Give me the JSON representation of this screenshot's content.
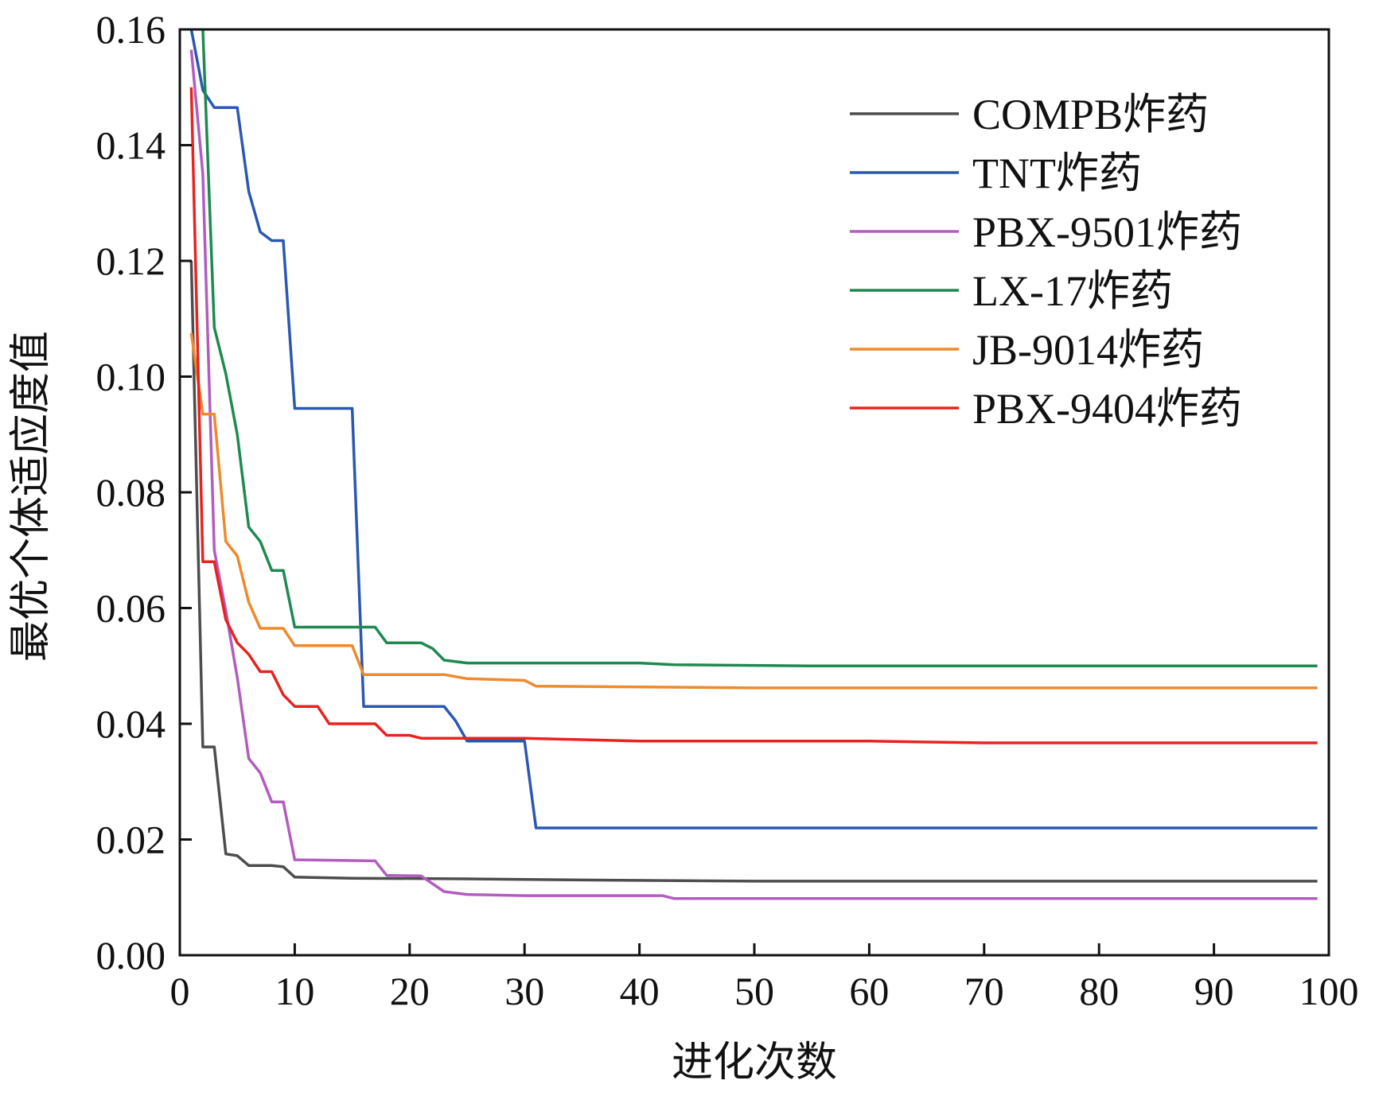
{
  "chart_data": {
    "type": "line",
    "xlabel": "进化次数",
    "ylabel": "最优个体适应度值",
    "xlim": [
      0,
      100
    ],
    "ylim": [
      0,
      0.16
    ],
    "x_ticks": [
      "0",
      "10",
      "20",
      "30",
      "40",
      "50",
      "60",
      "70",
      "80",
      "90",
      "100"
    ],
    "y_ticks": [
      "0.00",
      "0.02",
      "0.04",
      "0.06",
      "0.08",
      "0.10",
      "0.12",
      "0.14",
      "0.16"
    ],
    "grid": false,
    "legend_position": "top-right",
    "series": [
      {
        "name": "COMPB炸药",
        "color": "#4d4d4d",
        "points": [
          [
            1,
            0.12
          ],
          [
            2,
            0.036
          ],
          [
            3,
            0.036
          ],
          [
            4,
            0.0175
          ],
          [
            5,
            0.0172
          ],
          [
            6,
            0.0155
          ],
          [
            7,
            0.0155
          ],
          [
            8,
            0.0155
          ],
          [
            9,
            0.0153
          ],
          [
            10,
            0.0135
          ],
          [
            15,
            0.0133
          ],
          [
            25,
            0.0132
          ],
          [
            35,
            0.013
          ],
          [
            50,
            0.0128
          ],
          [
            99,
            0.0128
          ]
        ]
      },
      {
        "name": "TNT炸药",
        "color": "#2b57b4",
        "points": [
          [
            1,
            0.16
          ],
          [
            2,
            0.1495
          ],
          [
            3,
            0.1465
          ],
          [
            4,
            0.1465
          ],
          [
            5,
            0.1465
          ],
          [
            6,
            0.132
          ],
          [
            7,
            0.125
          ],
          [
            8,
            0.1235
          ],
          [
            9,
            0.1235
          ],
          [
            10,
            0.0945
          ],
          [
            15,
            0.0945
          ],
          [
            16,
            0.043
          ],
          [
            22,
            0.043
          ],
          [
            23,
            0.043
          ],
          [
            24,
            0.0405
          ],
          [
            25,
            0.037
          ],
          [
            30,
            0.037
          ],
          [
            31,
            0.022
          ],
          [
            99,
            0.022
          ]
        ]
      },
      {
        "name": "PBX-9501炸药",
        "color": "#b25cc0",
        "points": [
          [
            1,
            0.1565
          ],
          [
            2,
            0.135
          ],
          [
            3,
            0.07
          ],
          [
            4,
            0.0595
          ],
          [
            5,
            0.048
          ],
          [
            6,
            0.034
          ],
          [
            7,
            0.0315
          ],
          [
            8,
            0.0265
          ],
          [
            9,
            0.0265
          ],
          [
            10,
            0.0165
          ],
          [
            17,
            0.0163
          ],
          [
            18,
            0.0138
          ],
          [
            21,
            0.0137
          ],
          [
            23,
            0.011
          ],
          [
            25,
            0.0105
          ],
          [
            30,
            0.0103
          ],
          [
            42,
            0.0103
          ],
          [
            43,
            0.0098
          ],
          [
            99,
            0.0098
          ]
        ]
      },
      {
        "name": "LX-17炸药",
        "color": "#1e8a4f",
        "points": [
          [
            2,
            0.16
          ],
          [
            3,
            0.1085
          ],
          [
            4,
            0.1005
          ],
          [
            5,
            0.09
          ],
          [
            6,
            0.074
          ],
          [
            7,
            0.0715
          ],
          [
            8,
            0.0665
          ],
          [
            9,
            0.0665
          ],
          [
            10,
            0.0567
          ],
          [
            17,
            0.0567
          ],
          [
            18,
            0.054
          ],
          [
            21,
            0.054
          ],
          [
            22,
            0.053
          ],
          [
            23,
            0.051
          ],
          [
            25,
            0.0505
          ],
          [
            40,
            0.0505
          ],
          [
            43,
            0.0502
          ],
          [
            55,
            0.05
          ],
          [
            99,
            0.05
          ]
        ]
      },
      {
        "name": "JB-9014炸药",
        "color": "#ee8a2c",
        "points": [
          [
            1,
            0.1075
          ],
          [
            2,
            0.0935
          ],
          [
            3,
            0.0935
          ],
          [
            4,
            0.0715
          ],
          [
            5,
            0.069
          ],
          [
            6,
            0.061
          ],
          [
            7,
            0.0565
          ],
          [
            8,
            0.0565
          ],
          [
            9,
            0.0565
          ],
          [
            10,
            0.0535
          ],
          [
            15,
            0.0535
          ],
          [
            16,
            0.0485
          ],
          [
            23,
            0.0485
          ],
          [
            25,
            0.0478
          ],
          [
            30,
            0.0475
          ],
          [
            31,
            0.0465
          ],
          [
            50,
            0.0462
          ],
          [
            99,
            0.0462
          ]
        ]
      },
      {
        "name": "PBX-9404炸药",
        "color": "#e8231f",
        "points": [
          [
            1,
            0.15
          ],
          [
            2,
            0.068
          ],
          [
            3,
            0.068
          ],
          [
            4,
            0.058
          ],
          [
            5,
            0.054
          ],
          [
            6,
            0.052
          ],
          [
            7,
            0.049
          ],
          [
            8,
            0.049
          ],
          [
            9,
            0.045
          ],
          [
            10,
            0.043
          ],
          [
            11,
            0.043
          ],
          [
            12,
            0.043
          ],
          [
            13,
            0.04
          ],
          [
            17,
            0.04
          ],
          [
            18,
            0.038
          ],
          [
            20,
            0.038
          ],
          [
            21,
            0.0375
          ],
          [
            30,
            0.0375
          ],
          [
            40,
            0.037
          ],
          [
            60,
            0.037
          ],
          [
            70,
            0.0367
          ],
          [
            99,
            0.0367
          ]
        ]
      }
    ]
  }
}
